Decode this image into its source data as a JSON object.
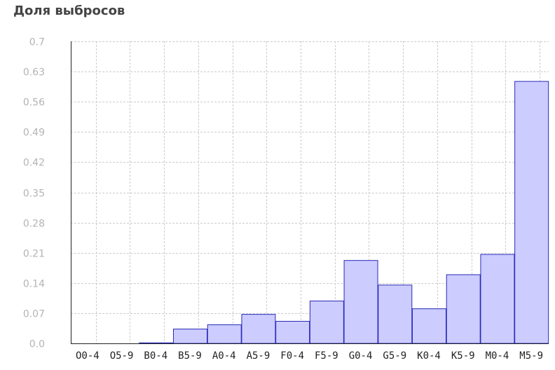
{
  "chart_data": {
    "type": "bar",
    "title": "Доля выбросов",
    "xlabel": "",
    "ylabel": "",
    "ylim": [
      0,
      0.7
    ],
    "yticks": [
      "0.0",
      "0.07",
      "0.14",
      "0.21",
      "0.28",
      "0.35",
      "0.42",
      "0.49",
      "0.56",
      "0.63",
      "0.7"
    ],
    "categories": [
      "O0-4",
      "O5-9",
      "B0-4",
      "B5-9",
      "A0-4",
      "A5-9",
      "F0-4",
      "F5-9",
      "G0-4",
      "G5-9",
      "K0-4",
      "K5-9",
      "M0-4",
      "M5-9"
    ],
    "values": [
      0.0,
      0.0,
      0.002,
      0.034,
      0.044,
      0.068,
      0.052,
      0.099,
      0.193,
      0.136,
      0.081,
      0.16,
      0.207,
      0.608
    ],
    "grid": true,
    "bar_fill": "#ccccff",
    "bar_stroke": "#2a2ab8",
    "grid_color": "#cccccc"
  }
}
